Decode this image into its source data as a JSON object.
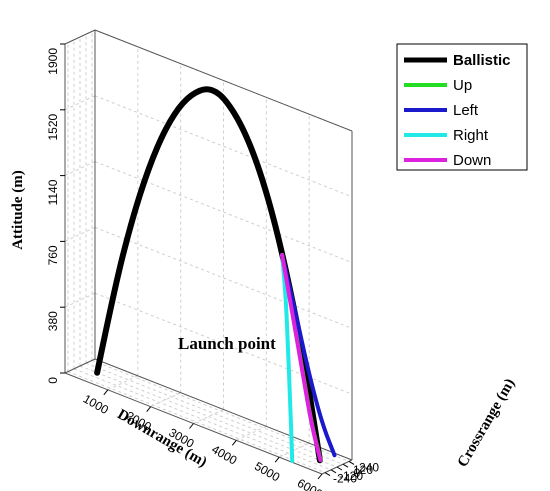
{
  "chart_data": {
    "type": "line",
    "projection": "3d",
    "axes": {
      "downrange": {
        "label": "Downrange (m)",
        "ticks": [
          "1000",
          "2000",
          "3000",
          "4000",
          "5000",
          "6000"
        ],
        "range": [
          0,
          6000
        ]
      },
      "crossrange": {
        "label": "Crossrange (m)",
        "ticks": [
          "-240",
          "-120",
          "0",
          "120",
          "240"
        ],
        "range": [
          -300,
          300
        ]
      },
      "altitude": {
        "label": "Attitude (m)",
        "ticks": [
          "0",
          "380",
          "760",
          "1140",
          "1520",
          "1900"
        ],
        "range": [
          0,
          1900
        ]
      }
    },
    "grid": true,
    "legend_placement": "top-right",
    "annotation": "Launch point",
    "series": [
      {
        "name": "Ballistic",
        "color": "#000000",
        "points": [
          [
            400,
            0,
            0
          ],
          [
            800,
            0,
            520
          ],
          [
            1200,
            0,
            950
          ],
          [
            1600,
            0,
            1300
          ],
          [
            2000,
            0,
            1570
          ],
          [
            2400,
            0,
            1760
          ],
          [
            2800,
            0,
            1870
          ],
          [
            3100,
            0,
            1900
          ],
          [
            3400,
            0,
            1870
          ],
          [
            3800,
            0,
            1750
          ],
          [
            4200,
            0,
            1540
          ],
          [
            4600,
            0,
            1230
          ],
          [
            5000,
            0,
            820
          ],
          [
            5300,
            0,
            450
          ],
          [
            5600,
            0,
            0
          ]
        ]
      },
      {
        "name": "Up",
        "color": "#22dd22",
        "points": [
          [
            4720,
            0,
            1100
          ],
          [
            4950,
            5,
            800
          ],
          [
            5200,
            10,
            450
          ],
          [
            5400,
            12,
            180
          ],
          [
            5600,
            15,
            0
          ]
        ]
      },
      {
        "name": "Left",
        "color": "#1a1acc",
        "points": [
          [
            4720,
            0,
            1100
          ],
          [
            4960,
            50,
            800
          ],
          [
            5200,
            120,
            450
          ],
          [
            5430,
            190,
            170
          ],
          [
            5650,
            250,
            0
          ]
        ]
      },
      {
        "name": "Right",
        "color": "#22e8e8",
        "points": [
          [
            4720,
            0,
            1100
          ],
          [
            4870,
            -60,
            900
          ],
          [
            5000,
            -130,
            650
          ],
          [
            5140,
            -200,
            330
          ],
          [
            5270,
            -270,
            0
          ]
        ]
      },
      {
        "name": "Down",
        "color": "#dd22dd",
        "points": [
          [
            4720,
            0,
            1100
          ],
          [
            4950,
            0,
            800
          ],
          [
            5200,
            5,
            450
          ],
          [
            5400,
            8,
            180
          ],
          [
            5600,
            10,
            0
          ]
        ]
      }
    ]
  }
}
